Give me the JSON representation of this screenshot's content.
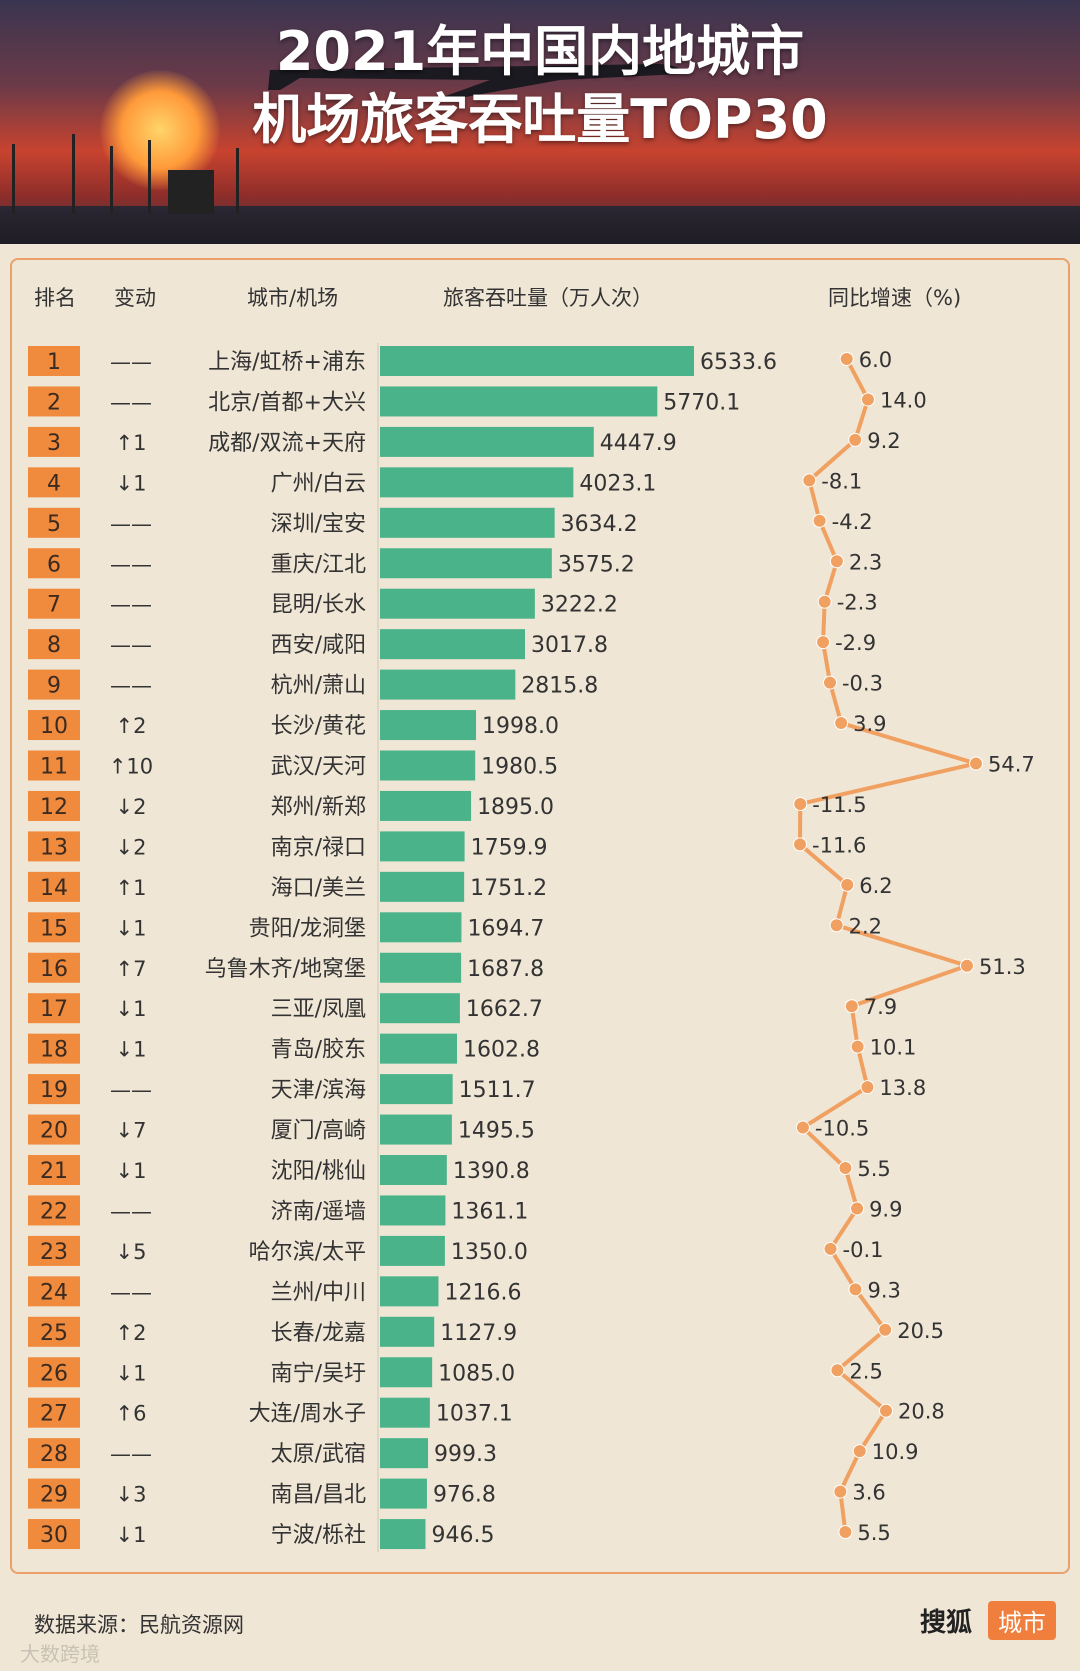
{
  "header": {
    "title": "2021年中国内地城市\n机场旅客吞吐量TOP30"
  },
  "table_headers": {
    "rank": "排名",
    "change": "变动",
    "city": "城市/机场",
    "passengers": "旅客吞吐量（万人次）",
    "growth": "同比增速（%)"
  },
  "footer": {
    "source": "数据来源：民航资源网",
    "brand": "搜狐",
    "brand_tag": "城市",
    "watermark": "大数跨境"
  },
  "colors": {
    "bar": "#4ab38a",
    "rank_badge": "#f08a3c",
    "growth_line": "#f0a060"
  },
  "chart_data": [
    {
      "type": "bar",
      "orientation": "horizontal",
      "title": "旅客吞吐量（万人次）",
      "categories": [
        "上海/虹桥+浦东",
        "北京/首都+大兴",
        "成都/双流+天府",
        "广州/白云",
        "深圳/宝安",
        "重庆/江北",
        "昆明/长水",
        "西安/咸阳",
        "杭州/萧山",
        "长沙/黄花",
        "武汉/天河",
        "郑州/新郑",
        "南京/禄口",
        "海口/美兰",
        "贵阳/龙洞堡",
        "乌鲁木齐/地窝堡",
        "三亚/凤凰",
        "青岛/胶东",
        "天津/滨海",
        "厦门/高崎",
        "沈阳/桃仙",
        "济南/遥墙",
        "哈尔滨/太平",
        "兰州/中川",
        "长春/龙嘉",
        "南宁/吴圩",
        "大连/周水子",
        "太原/武宿",
        "南昌/昌北",
        "宁波/栎社"
      ],
      "values": [
        6533.6,
        5770.1,
        4447.9,
        4023.1,
        3634.2,
        3575.2,
        3222.2,
        3017.8,
        2815.8,
        1998.0,
        1980.5,
        1895.0,
        1759.9,
        1751.2,
        1694.7,
        1687.8,
        1662.7,
        1602.8,
        1511.7,
        1495.5,
        1390.8,
        1361.1,
        1350.0,
        1216.6,
        1127.9,
        1085.0,
        1037.1,
        999.3,
        976.8,
        946.5
      ],
      "value_labels": [
        "6533.6",
        "5770.1",
        "4447.9",
        "4023.1",
        "3634.2",
        "3575.2",
        "3222.2",
        "3017.8",
        "2815.8",
        "1998.0",
        "1980.5",
        "1895.0",
        "1759.9",
        "1751.2",
        "1694.7",
        "1687.8",
        "1662.7",
        "1602.8",
        "1511.7",
        "1495.5",
        "1390.8",
        "1361.1",
        "1350.0",
        "1216.6",
        "1127.9",
        "1085.0",
        "1037.1",
        "999.3",
        "976.8",
        "946.5"
      ],
      "ranks": [
        "1",
        "2",
        "3",
        "4",
        "5",
        "6",
        "7",
        "8",
        "9",
        "10",
        "11",
        "12",
        "13",
        "14",
        "15",
        "16",
        "17",
        "18",
        "19",
        "20",
        "21",
        "22",
        "23",
        "24",
        "25",
        "26",
        "27",
        "28",
        "29",
        "30"
      ],
      "changes": [
        "——",
        "——",
        "↑1",
        "↓1",
        "——",
        "——",
        "——",
        "——",
        "——",
        "↑2",
        "↑10",
        "↓2",
        "↓2",
        "↑1",
        "↓1",
        "↑7",
        "↓1",
        "↓1",
        "——",
        "↓7",
        "↓1",
        "——",
        "↓5",
        "——",
        "↑2",
        "↓1",
        "↑6",
        "——",
        "↓3",
        "↓1"
      ]
    },
    {
      "type": "line",
      "orientation": "vertical",
      "title": "同比增速（%)",
      "values": [
        6.0,
        14.0,
        9.2,
        -8.1,
        -4.2,
        2.3,
        -2.3,
        -2.9,
        -0.3,
        3.9,
        54.7,
        -11.5,
        -11.6,
        6.2,
        2.2,
        51.3,
        7.9,
        10.1,
        13.8,
        -10.5,
        5.5,
        9.9,
        -0.1,
        9.3,
        20.5,
        2.5,
        20.8,
        10.9,
        3.6,
        5.5
      ],
      "value_labels": [
        "6.0",
        "14.0",
        "9.2",
        "-8.1",
        "-4.2",
        "2.3",
        "-2.3",
        "-2.9",
        "-0.3",
        "3.9",
        "54.7",
        "-11.5",
        "-11.6",
        "6.2",
        "2.2",
        "51.3",
        "7.9",
        "10.1",
        "13.8",
        "-10.5",
        "5.5",
        "9.9",
        "-0.1",
        "9.3",
        "20.5",
        "2.5",
        "20.8",
        "10.9",
        "3.6",
        "5.5"
      ]
    }
  ]
}
